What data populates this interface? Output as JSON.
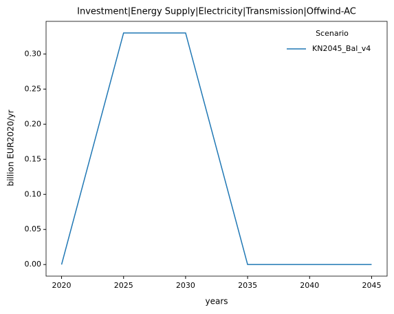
{
  "chart_data": {
    "type": "line",
    "title": "Investment|Energy Supply|Electricity|Transmission|Offwind-AC",
    "x_label": "years",
    "y_label": "billion EUR2020/yr",
    "x": [
      2020,
      2025,
      2030,
      2035,
      2040,
      2045
    ],
    "series": [
      {
        "name": "KN2045_Bal_v4",
        "color": "#1f77b4",
        "values": [
          0,
          0.33,
          0.33,
          0,
          0,
          0
        ]
      }
    ],
    "legend_title": "Scenario",
    "legend_position": "upper right",
    "xlim": [
      2018.75,
      2046.25
    ],
    "xticks": [
      2020,
      2025,
      2030,
      2035,
      2040,
      2045
    ],
    "ylim": [
      -0.0165,
      0.3465
    ],
    "yticks": [
      {
        "value": 0,
        "label": "0.00"
      },
      {
        "value": 0.05,
        "label": "0.05"
      },
      {
        "value": 0.1,
        "label": "0.10"
      },
      {
        "value": 0.15,
        "label": "0.15"
      },
      {
        "value": 0.2,
        "label": "0.20"
      },
      {
        "value": 0.25,
        "label": "0.25"
      },
      {
        "value": 0.3,
        "label": "0.30"
      }
    ],
    "grid": false
  }
}
